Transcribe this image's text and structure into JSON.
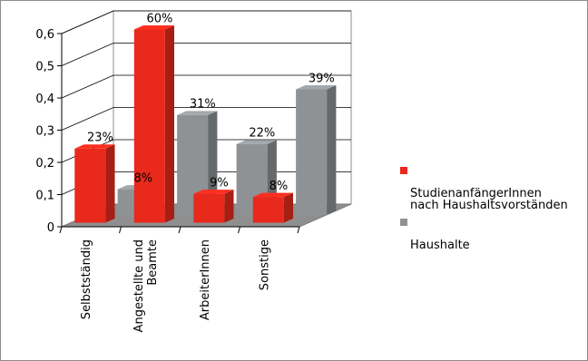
{
  "chart_data": {
    "type": "bar",
    "style": "3d-clustered",
    "categories": [
      "Selbstständig",
      "Angestellte und\nBeamte",
      "ArbeiterInnen",
      "Sonstige"
    ],
    "series": [
      {
        "name": "StudienanfängerInnen\nnach Haushaltsvorständen",
        "values": [
          0.23,
          0.6,
          0.09,
          0.08
        ],
        "labels": [
          "23%",
          "60%",
          "9%",
          "8%"
        ],
        "color": "#e8291c"
      },
      {
        "name": "Haushalte",
        "values": [
          0.08,
          0.31,
          0.22,
          0.39
        ],
        "labels": [
          "8%",
          "31%",
          "22%",
          "39%"
        ],
        "color": "#8e9295"
      }
    ],
    "y_ticks": [
      "0",
      "0,1",
      "0,2",
      "0,3",
      "0,4",
      "0,5",
      "0,6"
    ],
    "ylim": [
      0,
      0.6
    ],
    "grid": true,
    "legend_position": "right",
    "colors": {
      "floor": "#8f8f8f",
      "wall": "#ffffff",
      "frame": "#8c8c8c"
    }
  }
}
